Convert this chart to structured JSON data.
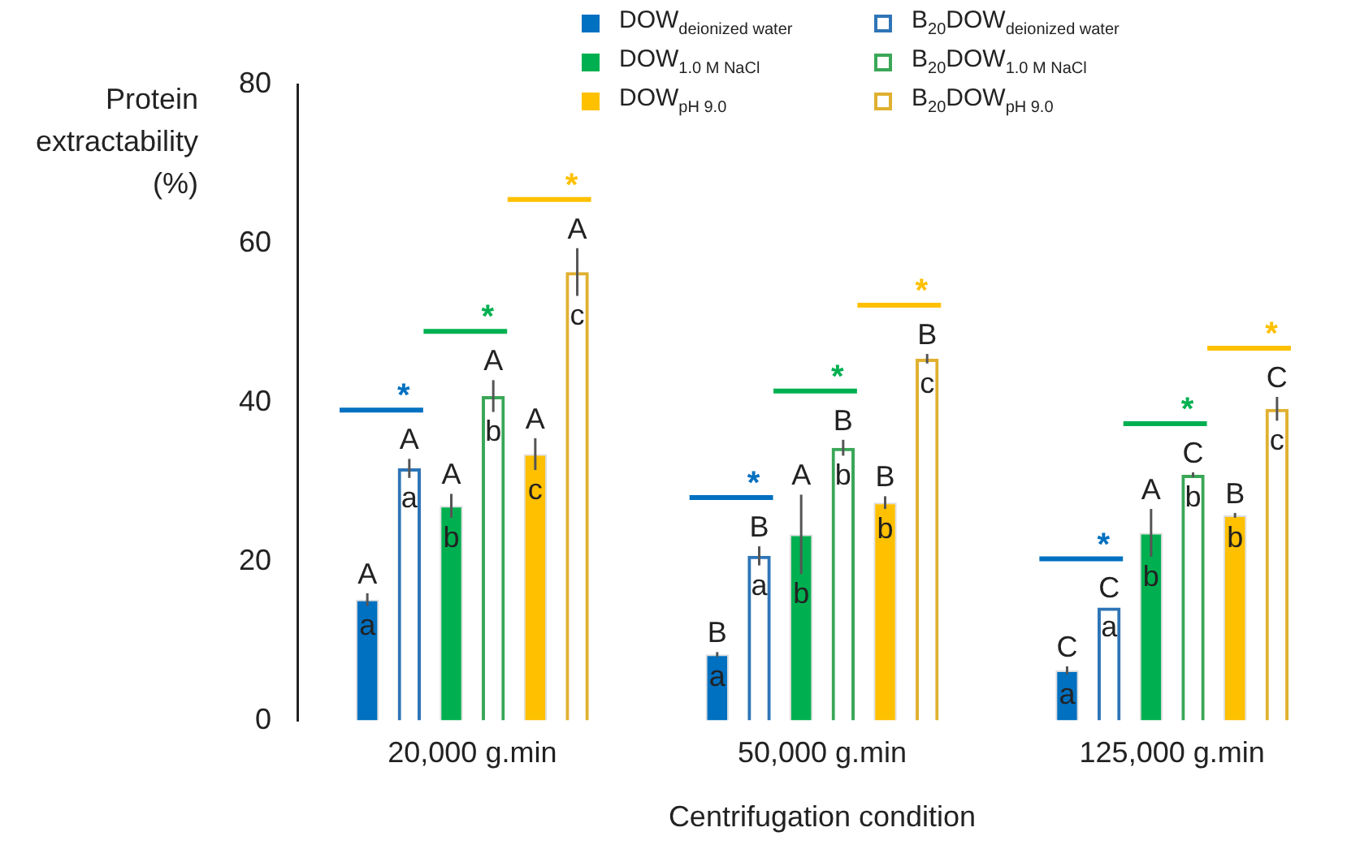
{
  "chart_data": {
    "type": "bar",
    "ylabel": "Protein extractability (%)",
    "xlabel": "Centrifugation condition",
    "categories": [
      "20,000 g.min",
      "50,000 g.min",
      "125,000 g.min"
    ],
    "ylim": [
      0,
      80
    ],
    "yticks": [
      0,
      20,
      40,
      60,
      80
    ],
    "grid": false,
    "legend": "top",
    "series": [
      {
        "name": "DOW$_{deionized water}$",
        "color": "#0070c0",
        "values": [
          15.2,
          8.3,
          6.3
        ],
        "errors": [
          0.8,
          0.3,
          0.5
        ],
        "value_labels": [
          "A",
          "B",
          "C"
        ]
      },
      {
        "name": "B$_{20}$DOW$_{deionized water}$",
        "color": "#2e75b6",
        "values": [
          31.7,
          20.7,
          14.2
        ],
        "errors": [
          1.2,
          1.2,
          null
        ],
        "value_labels": [
          "A",
          "B",
          "C"
        ]
      },
      {
        "name": "DOW$_{1.0 M NaCl}$",
        "color": "#00b050",
        "values": [
          27,
          23.4,
          23.6
        ],
        "errors": [
          1.5,
          5,
          3
        ],
        "value_labels": [
          "A",
          "A",
          "A"
        ]
      },
      {
        "name": "B$_{20}$DOW$_{1.0 M NaCl}$",
        "color": "#3aa757",
        "values": [
          40.8,
          34.3,
          30.9
        ],
        "errors": [
          2,
          1,
          0.3
        ],
        "value_labels": [
          "A",
          "B",
          "C"
        ]
      },
      {
        "name": "DOW$_{pH 9.0}$",
        "color": "#ffc000",
        "values": [
          33.5,
          27.4,
          25.8
        ],
        "errors": [
          2,
          0.8,
          0.3
        ],
        "value_labels": [
          "A",
          "B",
          "B"
        ]
      },
      {
        "name": "B$_{20}$DOW$_{pH 9.0}$",
        "color": "#e0b030",
        "values": [
          56.4,
          45.5,
          39.2
        ],
        "errors": [
          3,
          0.6,
          1.5
        ],
        "value_labels": [
          "A",
          "B",
          "C"
        ]
      }
    ],
    "annotations": [
      "a",
      "a",
      "a",
      "a",
      "a",
      "a",
      "b",
      "b",
      "b",
      "b",
      "b",
      "b",
      "c",
      "b",
      "b",
      "c",
      "c",
      "c",
      "*",
      "*",
      "*",
      "*",
      "*",
      "*",
      "*",
      "*",
      "*"
    ]
  }
}
